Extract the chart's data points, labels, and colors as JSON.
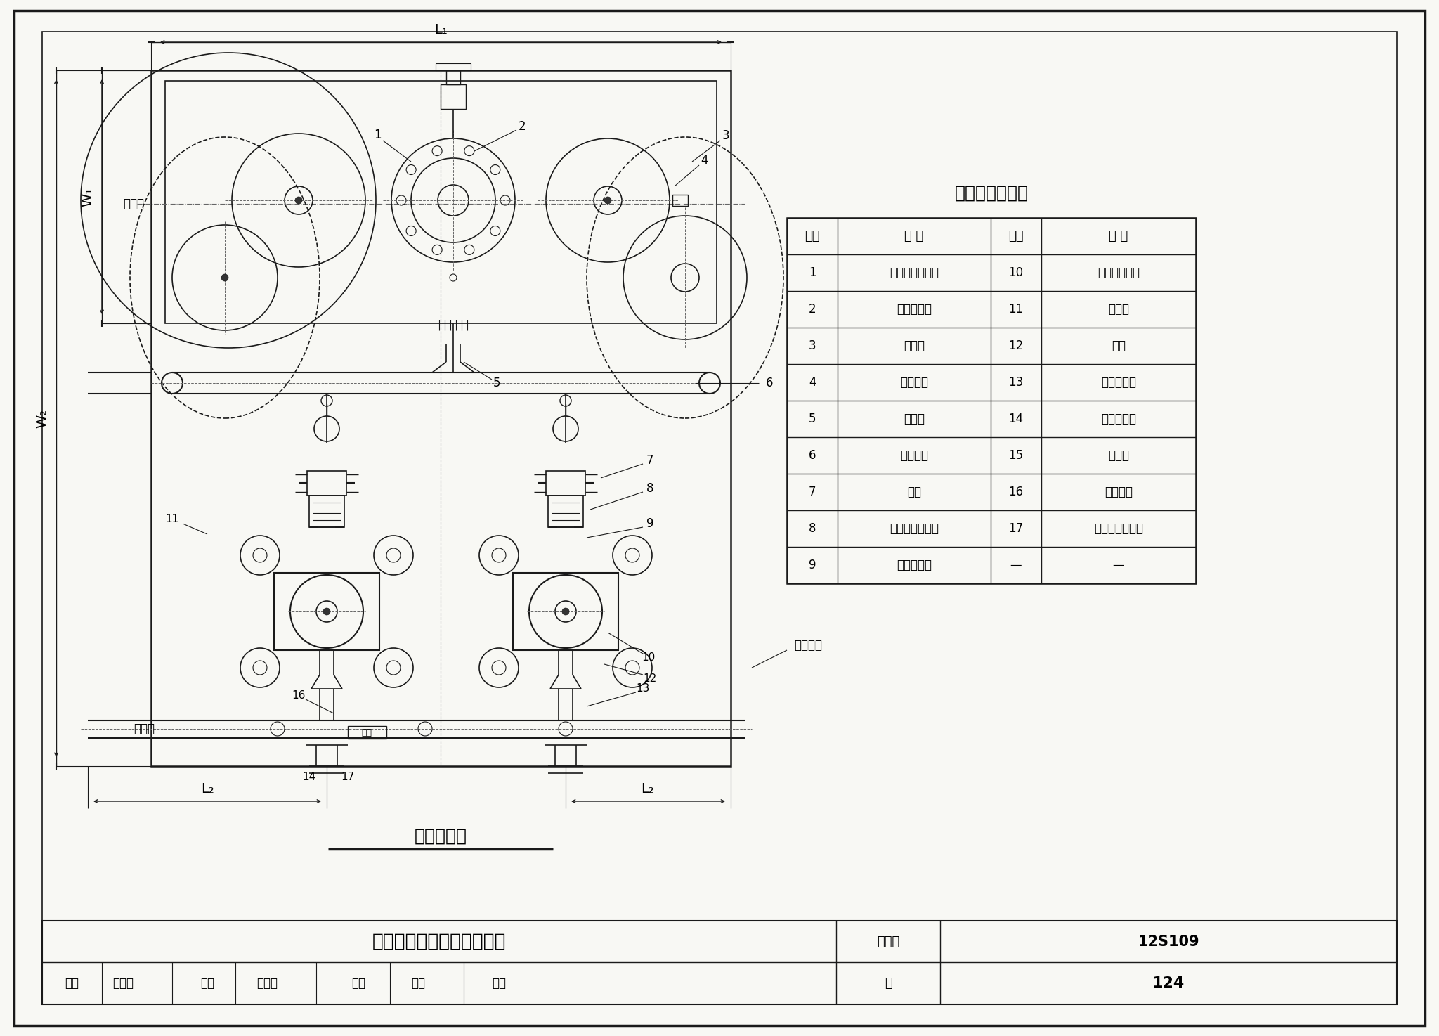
{
  "bg_color": "#f8f8f4",
  "line_color": "#1a1a1a",
  "title_table": "设备组成名称表",
  "table_headers": [
    "序号",
    "名 称",
    "序号",
    "名 称"
  ],
  "table_data": [
    [
      "1",
      "进水压力传感器",
      "10",
      "变频调速泵组"
    ],
    [
      "2",
      "流量控制器",
      "11",
      "减振器"
    ],
    [
      "3",
      "缓冲罐",
      "12",
      "底盘"
    ],
    [
      "4",
      "气压水罐",
      "13",
      "同心异径管"
    ],
    [
      "5",
      "排污口",
      "14",
      "就地压力表"
    ],
    [
      "6",
      "进水干管",
      "15",
      "止回阀"
    ],
    [
      "7",
      "蝶阀",
      "16",
      "出水干管"
    ],
    [
      "8",
      "可曲挠橡胶接头",
      "17",
      "出水压力传感器"
    ],
    [
      "9",
      "偏心异径管",
      "—",
      "—"
    ]
  ],
  "bottom_title": "高位调蓄式供水设备平面图",
  "bottom_label1": "图集号",
  "bottom_label2": "12S109",
  "bottom_label3": "页",
  "bottom_label4": "124",
  "caption": "设备平面图",
  "jinshui": "进水口",
  "chushui": "出水口",
  "shebei_jichu": "设备基础",
  "biaopai": "标牌",
  "shenhe": "审核",
  "jiaodui": "校对",
  "sheji": "设计",
  "ye": "页",
  "lhz": "李海珠",
  "dwx": "杜文欣",
  "wf": "王芳",
  "gz": "工芳"
}
